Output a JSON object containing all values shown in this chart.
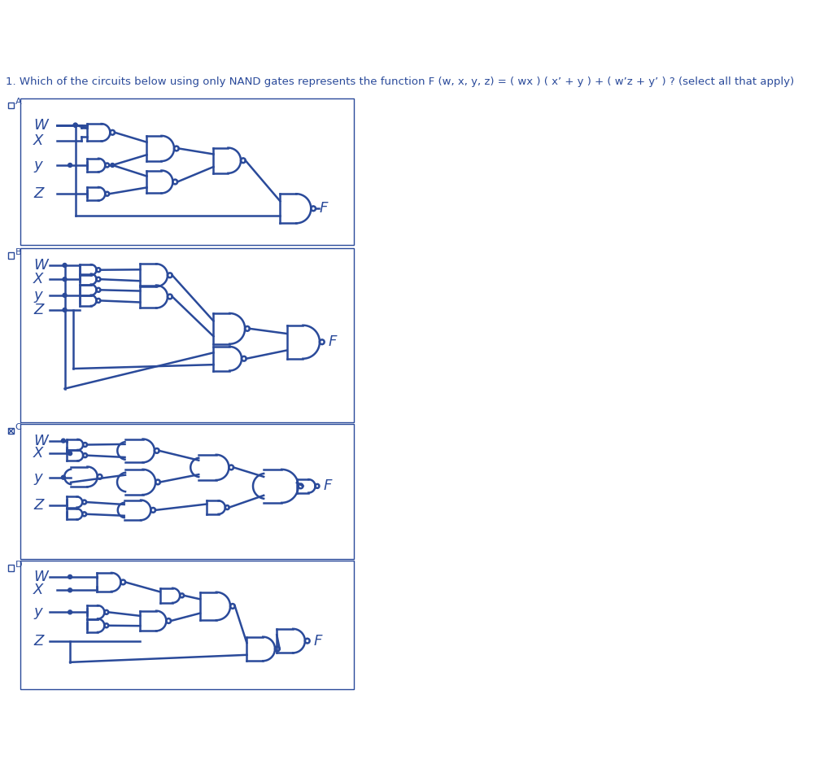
{
  "title": "1. Which of the circuits below using only NAND gates represents the function F (w, x, y, z) = ( wx ) ( x’ + y ) + ( w’z + y’ ) ? (select all that apply)",
  "bg_color": "#ffffff",
  "gate_color": "#2a4a9a",
  "text_color": "#2a4a9a",
  "wire_color": "#2a4a9a",
  "options": [
    "A",
    "B",
    "C",
    "D"
  ],
  "checked": [
    "C"
  ],
  "box_coords": {
    "A": [
      30,
      45,
      530,
      265
    ],
    "B": [
      30,
      270,
      530,
      530
    ],
    "C": [
      30,
      533,
      530,
      735
    ],
    "D": [
      30,
      738,
      530,
      930
    ]
  }
}
